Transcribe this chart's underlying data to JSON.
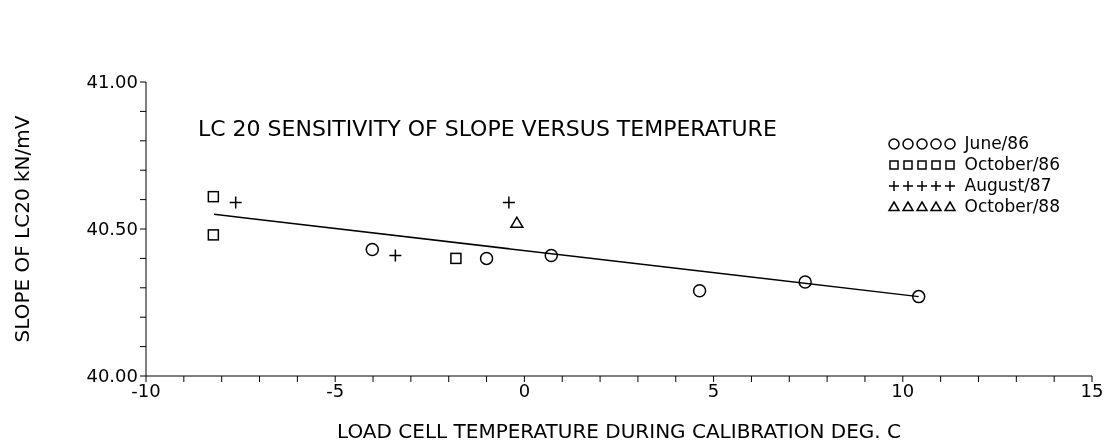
{
  "chart_data": {
    "type": "scatter",
    "title": "LC 20 SENSITIVITY OF SLOPE VERSUS TEMPERATURE",
    "xlabel": "LOAD CELL TEMPERATURE DURING CALIBRATION   DEG. C",
    "ylabel": "SLOPE OF LC20   kN/mV",
    "xlim": [
      -10,
      15
    ],
    "xticks": [
      -10,
      {
        "value": -9,
        "label": null
      },
      {
        "value": -8,
        "label": null
      },
      {
        "value": -7,
        "label": null
      },
      {
        "value": -6,
        "label": null
      },
      -5,
      {
        "value": -4,
        "label": null
      },
      {
        "value": -3,
        "label": null
      },
      {
        "value": -2,
        "label": null
      },
      {
        "value": -1,
        "label": null
      },
      0,
      {
        "value": 1,
        "label": null
      },
      {
        "value": 2,
        "label": null
      },
      {
        "value": 3,
        "label": null
      },
      {
        "value": 4,
        "label": null
      },
      5,
      {
        "value": 6,
        "label": null
      },
      {
        "value": 7,
        "label": null
      },
      {
        "value": 8,
        "label": null
      },
      {
        "value": 9,
        "label": null
      },
      10,
      {
        "value": 11,
        "label": null
      },
      {
        "value": 12,
        "label": null
      },
      {
        "value": 13,
        "label": null
      },
      {
        "value": 14,
        "label": null
      },
      15
    ],
    "ylim": [
      40,
      41
    ],
    "yticks": [
      {
        "value": 40,
        "label": "40.00"
      },
      {
        "value": 40.1,
        "label": null
      },
      {
        "value": 40.2,
        "label": null
      },
      {
        "value": 40.3,
        "label": null
      },
      {
        "value": 40.4,
        "label": null
      },
      {
        "value": 40.5,
        "label": "40.50"
      },
      {
        "value": 40.6,
        "label": null
      },
      {
        "value": 40.7,
        "label": null
      },
      {
        "value": 40.8,
        "label": null
      },
      {
        "value": 40.9,
        "label": null
      },
      {
        "value": 41,
        "label": "41.00"
      }
    ],
    "legend": "top right",
    "series": [
      {
        "name": "June/86",
        "color": "#000000",
        "marker": "circle",
        "x": [
          -4.02,
          -1.0,
          0.71,
          4.63,
          7.42,
          10.42
        ],
        "values": [
          40.43,
          40.4,
          40.41,
          40.29,
          40.32,
          40.27
        ]
      },
      {
        "name": "October/86",
        "color": "#000000",
        "marker": "square",
        "x": [
          -8.22,
          -8.22,
          -1.81
        ],
        "values": [
          40.61,
          40.48,
          40.4
        ]
      },
      {
        "name": "August/87",
        "color": "#000000",
        "marker": "cross",
        "x": [
          -7.63,
          -3.41,
          -0.41
        ],
        "values": [
          40.59,
          40.41,
          40.59
        ]
      },
      {
        "name": "October/88",
        "color": "#000000",
        "marker": "triangle",
        "x": [
          -0.2
        ],
        "values": [
          40.52
        ]
      },
      {
        "type": "line",
        "color": "#000000",
        "line_style": "solid",
        "marker": "none",
        "x": [
          -8.2,
          10.42
        ],
        "values": [
          40.55,
          40.27
        ]
      }
    ]
  }
}
